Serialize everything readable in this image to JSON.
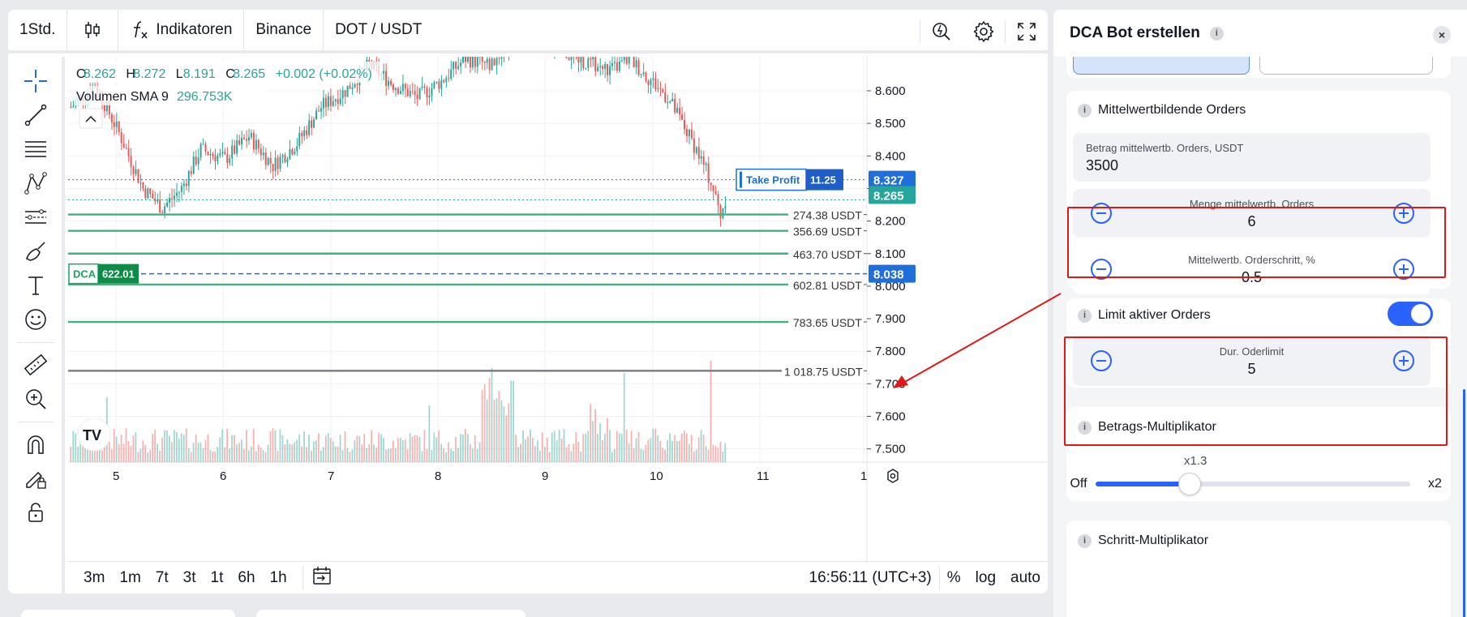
{
  "topbar": {
    "timeframe": "1Std.",
    "indicators_label": "Indikatoren",
    "exchange": "Binance",
    "symbol": "DOT / USDT"
  },
  "legend": {
    "o_label": "O",
    "o_value": "8.262",
    "h_label": "H",
    "h_value": "8.272",
    "l_label": "L",
    "l_value": "8.191",
    "c_label": "C",
    "c_value": "8.265",
    "change": "+0.002 (+0.02%)",
    "volume_label": "Volumen SMA 9",
    "volume_value": "296.753K"
  },
  "chart_data": {
    "type": "candlestick",
    "y_ticks": [
      "8.600",
      "8.500",
      "8.400",
      "8.300",
      "8.200",
      "8.100",
      "8.000",
      "7.900",
      "7.800",
      "7.700",
      "7.600",
      "7.500"
    ],
    "ylim": [
      7.45,
      8.68
    ],
    "x_ticks": [
      "5",
      "6",
      "7",
      "8",
      "9",
      "10",
      "11",
      "1"
    ],
    "take_profit": {
      "label": "Take Profit",
      "value": "11.25",
      "price": 8.327
    },
    "current_price": {
      "value": "8.265"
    },
    "dca": {
      "label": "DCA",
      "value": "622.01",
      "price": 8.038,
      "price_label": "8.038"
    },
    "order_lines": [
      {
        "price": 8.22,
        "label": "274.38 USDT"
      },
      {
        "price": 8.17,
        "label": "356.69 USDT"
      },
      {
        "price": 8.1,
        "label": "463.70 USDT"
      },
      {
        "price": 8.005,
        "label": "602.81 USDT"
      },
      {
        "price": 7.89,
        "label": "783.65 USDT"
      },
      {
        "price": 7.74,
        "label": "1 018.75 USDT"
      }
    ],
    "colors": {
      "up": "#26a69a",
      "down": "#ef5350",
      "order": "#3fb27f",
      "tp": "#1e6fd9",
      "dca": "#1e6fd9",
      "stop": "#787b86"
    }
  },
  "bottombar": {
    "timeframes": [
      "3m",
      "1m",
      "7t",
      "3t",
      "1t",
      "6h",
      "1h"
    ],
    "time": "16:56:11 (UTC+3)",
    "percent": "%",
    "log": "log",
    "auto": "auto"
  },
  "panel": {
    "title": "DCA Bot erstellen",
    "close": "×",
    "avg_orders": {
      "title": "Mittelwertbildende Orders",
      "amount_label": "Betrag mittelwertb. Orders, USDT",
      "amount_value": "3500",
      "count_label": "Menge mittelwertb. Orders",
      "count_value": "6",
      "step_label": "Mittelwertb. Orderschritt, %",
      "step_value": "0.5"
    },
    "active_limit": {
      "title": "Limit aktiver Orders",
      "limit_label": "Dur. Oderlimit",
      "limit_value": "5"
    },
    "amount_multiplier": {
      "title": "Betrags-Multiplikator",
      "value_label": "x1.3",
      "value": 1.3,
      "min_label": "Off",
      "max_label": "x2"
    },
    "step_multiplier": {
      "title": "Schritt-Multiplikator"
    }
  }
}
